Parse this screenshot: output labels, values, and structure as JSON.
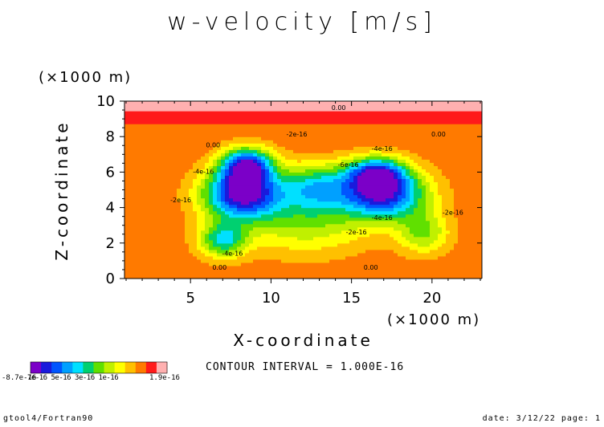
{
  "chart_data": {
    "type": "heatmap",
    "title": "w-velocity [m/s]",
    "xlabel": "X-coordinate",
    "ylabel": "Z-coordinate",
    "x_unit": "(×1000 m)",
    "y_unit": "(×1000 m)",
    "xlim": [
      0.9,
      23.1
    ],
    "ylim": [
      0,
      10
    ],
    "xticks": [
      5,
      10,
      15,
      20
    ],
    "yticks": [
      0,
      2,
      4,
      6,
      8,
      10
    ],
    "contour_interval": "CONTOUR INTERVAL = 1.000E-16",
    "contour_labels": [
      "0.00",
      "0.00",
      "0.00",
      "0.00",
      "0.00",
      "-2e-16",
      "-2e-16",
      "-2e-16",
      "-2e-16",
      "-4e-16",
      "-4e-16",
      "-4e-16",
      "-4e-16",
      "-6e-16"
    ],
    "colorbar": {
      "min_label": "-8.7e-16",
      "max_label": "1.9e-16",
      "tick_labels": "7e-16 5e-16 3e-16 1e-16",
      "colors": [
        "#7b00c8",
        "#1a1adc",
        "#0055ff",
        "#00a0ff",
        "#00e0ff",
        "#00d070",
        "#60e000",
        "#c0f000",
        "#ffff00",
        "#ffc000",
        "#ff7a00",
        "#ff1a1a",
        "#ffb0b0"
      ]
    },
    "field": {
      "background_level": 0.0,
      "positive_band_level": 1.2,
      "bands_high_to_low": [
        1.2,
        0,
        -1,
        -2,
        -3,
        -4,
        -5,
        -6,
        -7
      ],
      "features": [
        {
          "x": 8.2,
          "z": 4.8,
          "amp": -8.2,
          "sx": 2.4,
          "sz": 1.4
        },
        {
          "x": 8.5,
          "z": 6.4,
          "amp": -7.0,
          "sx": 1.6,
          "sz": 1.0
        },
        {
          "x": 7.0,
          "z": 2.2,
          "amp": -4.5,
          "sx": 1.5,
          "sz": 1.0
        },
        {
          "x": 17.0,
          "z": 4.8,
          "amp": -7.6,
          "sx": 2.6,
          "sz": 1.4
        },
        {
          "x": 16.5,
          "z": 6.0,
          "amp": -5.5,
          "sx": 1.8,
          "sz": 0.9
        },
        {
          "x": 12.8,
          "z": 5.2,
          "amp": -4.2,
          "sx": 2.2,
          "sz": 1.3
        },
        {
          "x": 12.2,
          "z": 3.2,
          "amp": -2.8,
          "sx": 4.0,
          "sz": 1.8
        },
        {
          "x": 19.5,
          "z": 2.6,
          "amp": -3.0,
          "sx": 1.6,
          "sz": 1.2
        }
      ]
    }
  },
  "footer": {
    "left": "gtool4/Fortran90",
    "right": "date: 3/12/22 page: 1"
  }
}
